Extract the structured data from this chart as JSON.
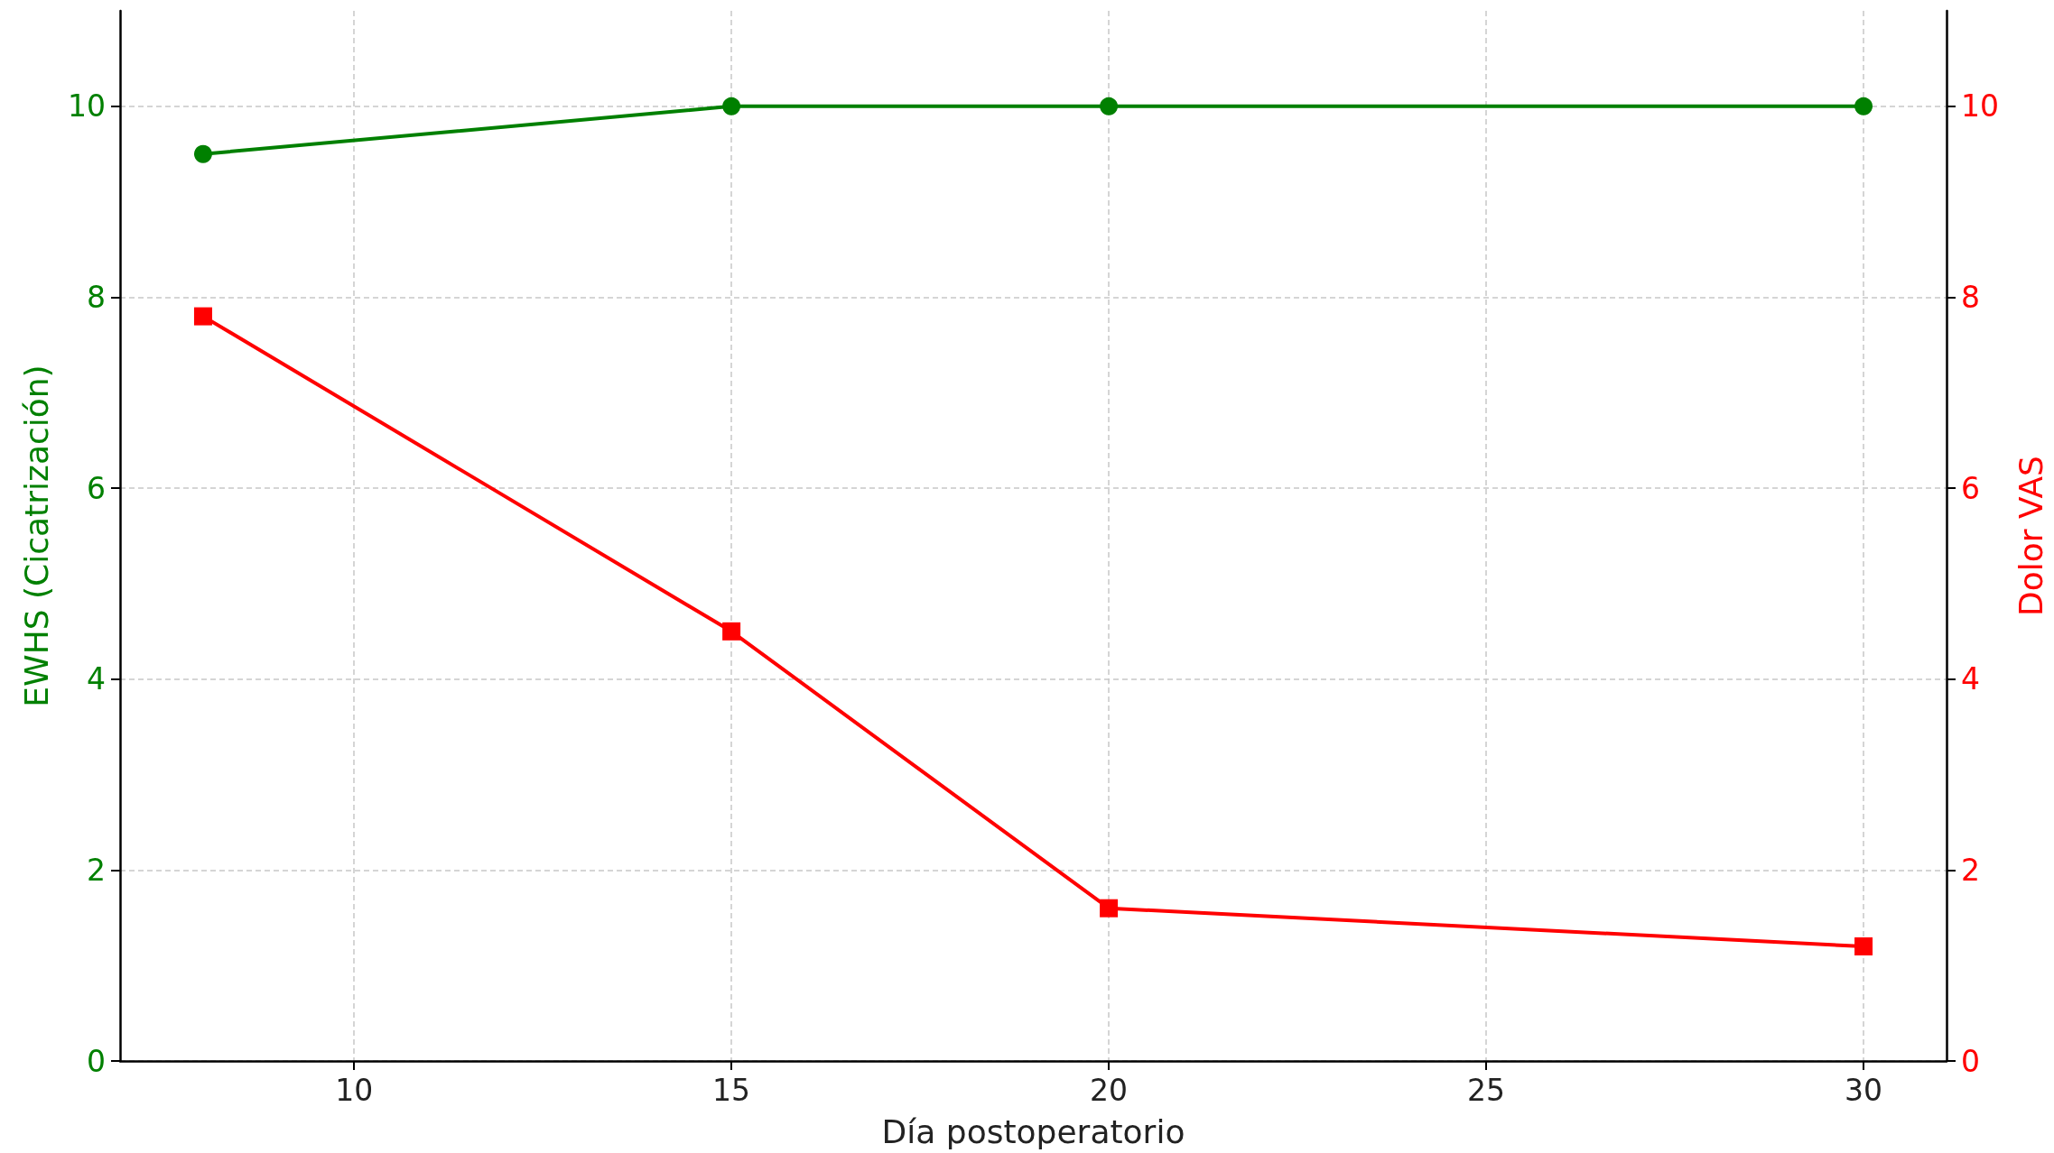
{
  "chart_data": {
    "type": "line",
    "xlabel": "Día postoperatorio",
    "ylabel": "EWHS (Cicatrización)",
    "y2label": "Dolor VAS",
    "x": [
      8,
      15,
      20,
      30
    ],
    "series": [
      {
        "color": "#008000",
        "values": [
          9.5,
          10,
          10,
          10
        ],
        "marker": "circle"
      },
      {
        "color": "#ff0000",
        "values": [
          7.8,
          4.5,
          1.6,
          1.2
        ],
        "marker": "square",
        "axis": "y2"
      }
    ],
    "xlim": [
      6.9,
      31.1
    ],
    "xticks": [
      10,
      15,
      20,
      25,
      30
    ],
    "ylim": [
      0,
      11
    ],
    "yticks": [
      0,
      2,
      4,
      6,
      8,
      10
    ],
    "y2lim": [
      0,
      11
    ],
    "y2ticks": [
      0,
      2,
      4,
      6,
      8,
      10
    ],
    "grid": true,
    "line_style": "solid"
  }
}
